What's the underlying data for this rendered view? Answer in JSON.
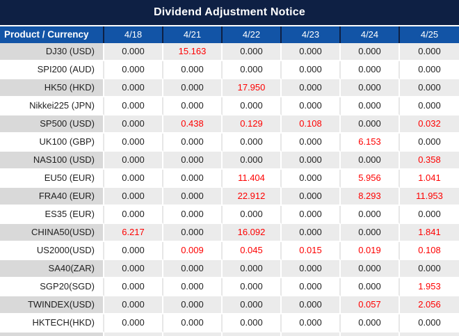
{
  "title": "Dividend Adjustment Notice",
  "colors": {
    "title_bg": "#0e2044",
    "header_bg": "#1254a6",
    "divider_navy": "#0e2044",
    "row_gray": "#ebebeb",
    "row_gray_first_col": "#d9d9d9",
    "value_red": "#fe0000",
    "text_dark": "#1f1f1f"
  },
  "table": {
    "header": {
      "product_label": "Product / Currency",
      "dates": [
        "4/18",
        "4/21",
        "4/22",
        "4/23",
        "4/24",
        "4/25"
      ]
    },
    "rows": [
      {
        "product": "DJ30 (USD)",
        "values": [
          "0.000",
          "15.163",
          "0.000",
          "0.000",
          "0.000",
          "0.000"
        ],
        "red_indices": [
          1
        ]
      },
      {
        "product": "SPI200 (AUD)",
        "values": [
          "0.000",
          "0.000",
          "0.000",
          "0.000",
          "0.000",
          "0.000"
        ],
        "red_indices": []
      },
      {
        "product": "HK50 (HKD)",
        "values": [
          "0.000",
          "0.000",
          "17.950",
          "0.000",
          "0.000",
          "0.000"
        ],
        "red_indices": [
          2
        ]
      },
      {
        "product": "Nikkei225 (JPN)",
        "values": [
          "0.000",
          "0.000",
          "0.000",
          "0.000",
          "0.000",
          "0.000"
        ],
        "red_indices": []
      },
      {
        "product": "SP500 (USD)",
        "values": [
          "0.000",
          "0.438",
          "0.129",
          "0.108",
          "0.000",
          "0.032"
        ],
        "red_indices": [
          1,
          2,
          3,
          5
        ]
      },
      {
        "product": "UK100 (GBP)",
        "values": [
          "0.000",
          "0.000",
          "0.000",
          "0.000",
          "6.153",
          "0.000"
        ],
        "red_indices": [
          4
        ]
      },
      {
        "product": "NAS100 (USD)",
        "values": [
          "0.000",
          "0.000",
          "0.000",
          "0.000",
          "0.000",
          "0.358"
        ],
        "red_indices": [
          5
        ]
      },
      {
        "product": "EU50 (EUR)",
        "values": [
          "0.000",
          "0.000",
          "11.404",
          "0.000",
          "5.956",
          "1.041"
        ],
        "red_indices": [
          2,
          4,
          5
        ]
      },
      {
        "product": "FRA40 (EUR)",
        "values": [
          "0.000",
          "0.000",
          "22.912",
          "0.000",
          "8.293",
          "11.953"
        ],
        "red_indices": [
          2,
          4,
          5
        ]
      },
      {
        "product": "ES35 (EUR)",
        "values": [
          "0.000",
          "0.000",
          "0.000",
          "0.000",
          "0.000",
          "0.000"
        ],
        "red_indices": []
      },
      {
        "product": "CHINA50(USD)",
        "values": [
          "6.217",
          "0.000",
          "16.092",
          "0.000",
          "0.000",
          "1.841"
        ],
        "red_indices": [
          0,
          2,
          5
        ]
      },
      {
        "product": "US2000(USD)",
        "values": [
          "0.000",
          "0.009",
          "0.045",
          "0.015",
          "0.019",
          "0.108"
        ],
        "red_indices": [
          1,
          2,
          3,
          4,
          5
        ]
      },
      {
        "product": "SA40(ZAR)",
        "values": [
          "0.000",
          "0.000",
          "0.000",
          "0.000",
          "0.000",
          "0.000"
        ],
        "red_indices": []
      },
      {
        "product": "SGP20(SGD)",
        "values": [
          "0.000",
          "0.000",
          "0.000",
          "0.000",
          "0.000",
          "1.953"
        ],
        "red_indices": [
          5
        ]
      },
      {
        "product": "TWINDEX(USD)",
        "values": [
          "0.000",
          "0.000",
          "0.000",
          "0.000",
          "0.057",
          "2.056"
        ],
        "red_indices": [
          4,
          5
        ]
      },
      {
        "product": "HKTECH(HKD)",
        "values": [
          "0.000",
          "0.000",
          "0.000",
          "0.000",
          "0.000",
          "0.000"
        ],
        "red_indices": []
      }
    ]
  },
  "chart_data": {
    "type": "table",
    "title": "Dividend Adjustment Notice",
    "columns": [
      "Product / Currency",
      "4/18",
      "4/21",
      "4/22",
      "4/23",
      "4/24",
      "4/25"
    ],
    "rows": [
      [
        "DJ30 (USD)",
        0.0,
        15.163,
        0.0,
        0.0,
        0.0,
        0.0
      ],
      [
        "SPI200 (AUD)",
        0.0,
        0.0,
        0.0,
        0.0,
        0.0,
        0.0
      ],
      [
        "HK50 (HKD)",
        0.0,
        0.0,
        17.95,
        0.0,
        0.0,
        0.0
      ],
      [
        "Nikkei225 (JPN)",
        0.0,
        0.0,
        0.0,
        0.0,
        0.0,
        0.0
      ],
      [
        "SP500 (USD)",
        0.0,
        0.438,
        0.129,
        0.108,
        0.0,
        0.032
      ],
      [
        "UK100 (GBP)",
        0.0,
        0.0,
        0.0,
        0.0,
        6.153,
        0.0
      ],
      [
        "NAS100 (USD)",
        0.0,
        0.0,
        0.0,
        0.0,
        0.0,
        0.358
      ],
      [
        "EU50 (EUR)",
        0.0,
        0.0,
        11.404,
        0.0,
        5.956,
        1.041
      ],
      [
        "FRA40 (EUR)",
        0.0,
        0.0,
        22.912,
        0.0,
        8.293,
        11.953
      ],
      [
        "ES35 (EUR)",
        0.0,
        0.0,
        0.0,
        0.0,
        0.0,
        0.0
      ],
      [
        "CHINA50(USD)",
        6.217,
        0.0,
        16.092,
        0.0,
        0.0,
        1.841
      ],
      [
        "US2000(USD)",
        0.0,
        0.009,
        0.045,
        0.015,
        0.019,
        0.108
      ],
      [
        "SA40(ZAR)",
        0.0,
        0.0,
        0.0,
        0.0,
        0.0,
        0.0
      ],
      [
        "SGP20(SGD)",
        0.0,
        0.0,
        0.0,
        0.0,
        0.0,
        1.953
      ],
      [
        "TWINDEX(USD)",
        0.0,
        0.0,
        0.0,
        0.0,
        0.057,
        2.056
      ],
      [
        "HKTECH(HKD)",
        0.0,
        0.0,
        0.0,
        0.0,
        0.0,
        0.0
      ]
    ]
  }
}
